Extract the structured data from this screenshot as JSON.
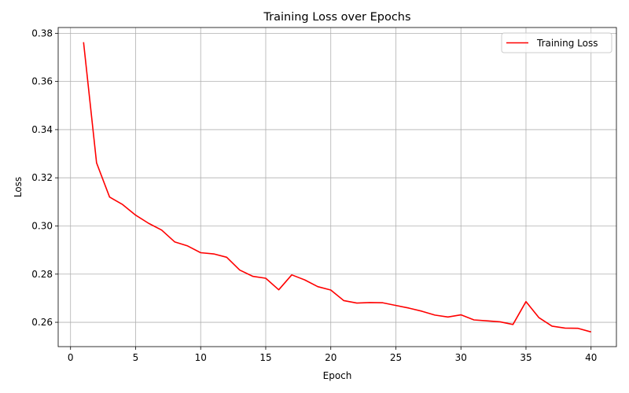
{
  "chart_data": {
    "type": "line",
    "title": "Training Loss over Epochs",
    "xlabel": "Epoch",
    "ylabel": "Loss",
    "xlim": [
      -0.95,
      41.95
    ],
    "ylim": [
      0.2499,
      0.3824
    ],
    "xticks": [
      0,
      5,
      10,
      15,
      20,
      25,
      30,
      35,
      40
    ],
    "yticks": [
      0.26,
      0.28,
      0.3,
      0.32,
      0.34,
      0.36,
      0.38
    ],
    "xtick_labels": [
      "0",
      "5",
      "10",
      "15",
      "20",
      "25",
      "30",
      "35",
      "40"
    ],
    "ytick_labels": [
      "0.26",
      "0.28",
      "0.30",
      "0.32",
      "0.34",
      "0.36",
      "0.38"
    ],
    "grid": true,
    "legend_position": "top-right",
    "series": [
      {
        "name": "Training Loss",
        "color": "#ff0000",
        "x": [
          1,
          2,
          3,
          4,
          5,
          6,
          7,
          8,
          9,
          10,
          11,
          12,
          13,
          14,
          15,
          16,
          17,
          18,
          19,
          20,
          21,
          22,
          23,
          24,
          25,
          26,
          27,
          28,
          29,
          30,
          31,
          32,
          33,
          34,
          35,
          36,
          37,
          38,
          39,
          40
        ],
        "y": [
          0.3763,
          0.3262,
          0.312,
          0.3089,
          0.3045,
          0.3011,
          0.2983,
          0.2934,
          0.2917,
          0.2889,
          0.2884,
          0.287,
          0.2817,
          0.2791,
          0.2783,
          0.2735,
          0.2797,
          0.2776,
          0.2748,
          0.2734,
          0.269,
          0.268,
          0.2682,
          0.2681,
          0.267,
          0.2659,
          0.2646,
          0.263,
          0.2622,
          0.2631,
          0.261,
          0.2606,
          0.2602,
          0.2591,
          0.2686,
          0.2619,
          0.2584,
          0.2576,
          0.2575,
          0.256
        ]
      }
    ]
  }
}
